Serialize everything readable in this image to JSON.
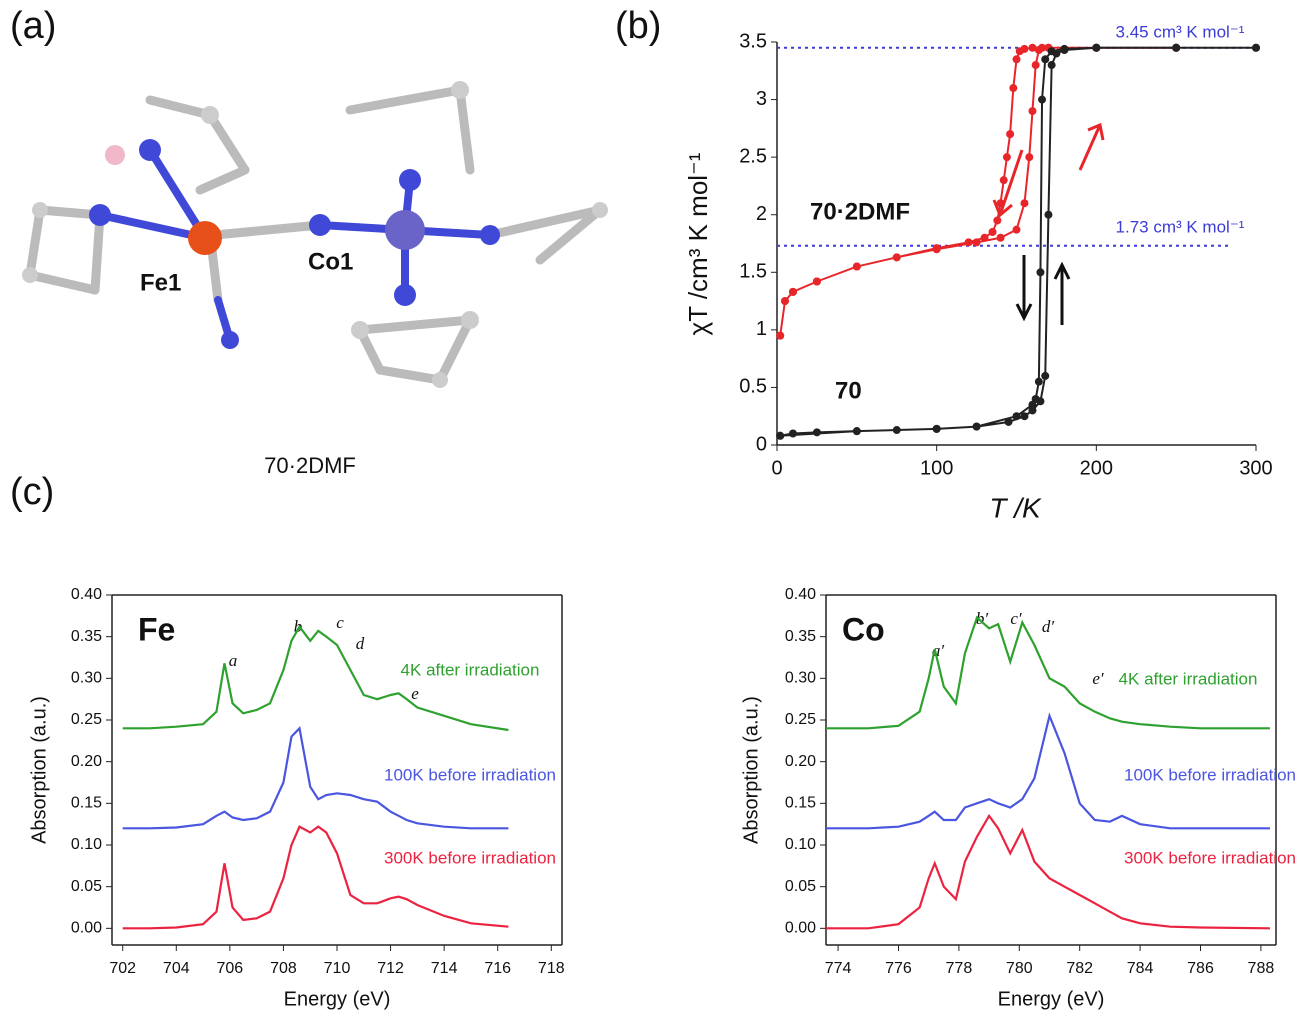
{
  "panel_labels": [
    "(a)",
    "(b)",
    "(c)"
  ],
  "molecule": {
    "atom_labels": [
      "Fe1",
      "Co1"
    ],
    "caption": "70·2DMF"
  },
  "chart_data": [
    {
      "type": "line",
      "xlabel": "T /K",
      "ylabel": "χT /cm³ K mol⁻¹",
      "xlim": [
        0,
        300
      ],
      "xticks": [
        0,
        100,
        200,
        300
      ],
      "ylim": [
        0,
        3.5
      ],
      "yticks": [
        0,
        0.5,
        1,
        1.5,
        2,
        2.5,
        3,
        3.5
      ],
      "markers": true,
      "reference_lines": [
        {
          "value": 3.45,
          "label": "3.45 cm³ K mol⁻¹"
        },
        {
          "value": 1.73,
          "label": "1.73 cm³ K mol⁻¹"
        }
      ],
      "reference_color": "#3b3bd6",
      "series": [
        {
          "name": "70·2DMF",
          "color": "#e8262a",
          "x": [
            2,
            5,
            10,
            25,
            50,
            75,
            100,
            125,
            140,
            150,
            155,
            158,
            160,
            162,
            164,
            166,
            170,
            200,
            250,
            250,
            200,
            170,
            160,
            155,
            152,
            150,
            148,
            146,
            144,
            142,
            140,
            138,
            135,
            130,
            120,
            100,
            75,
            50,
            25,
            10,
            5,
            2
          ],
          "values": [
            0.95,
            1.25,
            1.33,
            1.42,
            1.55,
            1.63,
            1.7,
            1.76,
            1.8,
            1.87,
            2.1,
            2.5,
            2.9,
            3.3,
            3.43,
            3.45,
            3.45,
            3.45,
            3.45,
            3.45,
            3.45,
            3.45,
            3.45,
            3.44,
            3.42,
            3.35,
            3.1,
            2.7,
            2.5,
            2.3,
            2.1,
            1.95,
            1.85,
            1.8,
            1.76,
            1.71,
            1.63,
            1.55,
            1.42,
            1.33,
            1.25,
            0.95
          ]
        },
        {
          "name": "70",
          "color": "#222222",
          "x": [
            2,
            10,
            25,
            50,
            75,
            100,
            125,
            145,
            155,
            160,
            165,
            168,
            170,
            172,
            175,
            180,
            200,
            250,
            300,
            300,
            250,
            200,
            180,
            172,
            168,
            166,
            165,
            164,
            162,
            160,
            150,
            125,
            100,
            50,
            2
          ],
          "values": [
            0.08,
            0.1,
            0.11,
            0.12,
            0.13,
            0.14,
            0.16,
            0.2,
            0.25,
            0.3,
            0.38,
            0.6,
            2.0,
            3.3,
            3.4,
            3.43,
            3.45,
            3.45,
            3.45,
            3.45,
            3.45,
            3.45,
            3.44,
            3.42,
            3.35,
            3.0,
            1.5,
            0.55,
            0.4,
            0.35,
            0.25,
            0.16,
            0.14,
            0.12,
            0.08
          ]
        }
      ]
    },
    {
      "type": "line",
      "title": "Fe",
      "xlabel": "Energy (eV)",
      "ylabel": "Absorption (a.u.)",
      "xlim": [
        701.6,
        718.4
      ],
      "xticks": [
        702,
        704,
        706,
        708,
        710,
        712,
        714,
        716,
        718
      ],
      "ylim": [
        -0.02,
        0.4
      ],
      "yticks": [
        {
          "value": 0,
          "label": "0.00"
        },
        {
          "value": 0.05,
          "label": "0.05"
        },
        {
          "value": 0.1,
          "label": "0.10"
        },
        {
          "value": 0.15,
          "label": "0.15"
        },
        {
          "value": 0.2,
          "label": "0.20"
        },
        {
          "value": 0.25,
          "label": "0.25"
        },
        {
          "value": 0.3,
          "label": "0.30"
        },
        {
          "value": 0.35,
          "label": "0.35"
        },
        {
          "value": 0.4,
          "label": "0.40"
        }
      ],
      "annotations": [
        "a",
        "b",
        "c",
        "d",
        "e"
      ],
      "x": [
        702,
        703,
        704,
        705,
        705.5,
        705.8,
        706.1,
        706.5,
        707,
        707.5,
        708,
        708.3,
        708.6,
        709,
        709.3,
        709.6,
        710,
        710.5,
        711,
        711.5,
        712,
        712.3,
        712.6,
        713,
        714,
        715,
        716.4
      ],
      "series": [
        {
          "name": "4K after irradiation",
          "color": "#2fa12f",
          "values": [
            0.24,
            0.24,
            0.242,
            0.245,
            0.26,
            0.318,
            0.27,
            0.258,
            0.262,
            0.27,
            0.31,
            0.345,
            0.362,
            0.345,
            0.357,
            0.35,
            0.34,
            0.31,
            0.28,
            0.275,
            0.28,
            0.282,
            0.275,
            0.265,
            0.255,
            0.245,
            0.238
          ]
        },
        {
          "name": "100K before irradiation",
          "color": "#4a55e0",
          "values": [
            0.12,
            0.12,
            0.121,
            0.125,
            0.135,
            0.14,
            0.133,
            0.13,
            0.132,
            0.14,
            0.175,
            0.23,
            0.24,
            0.17,
            0.155,
            0.16,
            0.162,
            0.16,
            0.155,
            0.152,
            0.14,
            0.135,
            0.13,
            0.126,
            0.122,
            0.12,
            0.12
          ]
        },
        {
          "name": "300K before irradiation",
          "color": "#ec2340",
          "values": [
            0,
            0,
            0.001,
            0.005,
            0.02,
            0.078,
            0.025,
            0.01,
            0.012,
            0.02,
            0.06,
            0.1,
            0.122,
            0.115,
            0.122,
            0.115,
            0.09,
            0.04,
            0.03,
            0.03,
            0.036,
            0.038,
            0.035,
            0.028,
            0.015,
            0.006,
            0.002
          ]
        }
      ]
    },
    {
      "type": "line",
      "title": "Co",
      "xlabel": "Energy (eV)",
      "ylabel": "Absorption (a.u.)",
      "xlim": [
        773.6,
        788.5
      ],
      "xticks": [
        774,
        776,
        778,
        780,
        782,
        784,
        786,
        788
      ],
      "ylim": [
        -0.02,
        0.4
      ],
      "yticks": [
        {
          "value": 0,
          "label": "0.00"
        },
        {
          "value": 0.05,
          "label": "0.05"
        },
        {
          "value": 0.1,
          "label": "0.10"
        },
        {
          "value": 0.15,
          "label": "0.15"
        },
        {
          "value": 0.2,
          "label": "0.20"
        },
        {
          "value": 0.25,
          "label": "0.25"
        },
        {
          "value": 0.3,
          "label": "0.30"
        },
        {
          "value": 0.35,
          "label": "0.35"
        },
        {
          "value": 0.4,
          "label": "0.40"
        }
      ],
      "annotations": [
        "a′",
        "b′",
        "c′",
        "d′",
        "e′"
      ],
      "x": [
        773.6,
        775,
        776,
        776.7,
        777,
        777.2,
        777.5,
        777.9,
        778.2,
        778.6,
        779,
        779.3,
        779.7,
        780.1,
        780.5,
        781,
        781.5,
        782,
        782.5,
        783,
        783.4,
        784,
        785,
        786,
        788.3
      ],
      "series": [
        {
          "name": "4K after irradiation",
          "color": "#2fa12f",
          "values": [
            0.24,
            0.24,
            0.243,
            0.26,
            0.3,
            0.335,
            0.29,
            0.27,
            0.33,
            0.373,
            0.36,
            0.365,
            0.32,
            0.367,
            0.34,
            0.3,
            0.29,
            0.27,
            0.26,
            0.252,
            0.248,
            0.245,
            0.242,
            0.24,
            0.24
          ]
        },
        {
          "name": "100K before irradiation",
          "color": "#4a55e0",
          "values": [
            0.12,
            0.12,
            0.122,
            0.128,
            0.135,
            0.14,
            0.13,
            0.13,
            0.145,
            0.15,
            0.155,
            0.15,
            0.145,
            0.155,
            0.18,
            0.255,
            0.21,
            0.15,
            0.13,
            0.128,
            0.135,
            0.125,
            0.12,
            0.12,
            0.12
          ]
        },
        {
          "name": "300K before irradiation",
          "color": "#ec2340",
          "values": [
            0,
            0,
            0.005,
            0.025,
            0.06,
            0.078,
            0.05,
            0.035,
            0.08,
            0.11,
            0.135,
            0.12,
            0.09,
            0.118,
            0.08,
            0.06,
            0.05,
            0.04,
            0.03,
            0.02,
            0.012,
            0.006,
            0.002,
            0.001,
            0
          ]
        }
      ]
    }
  ]
}
